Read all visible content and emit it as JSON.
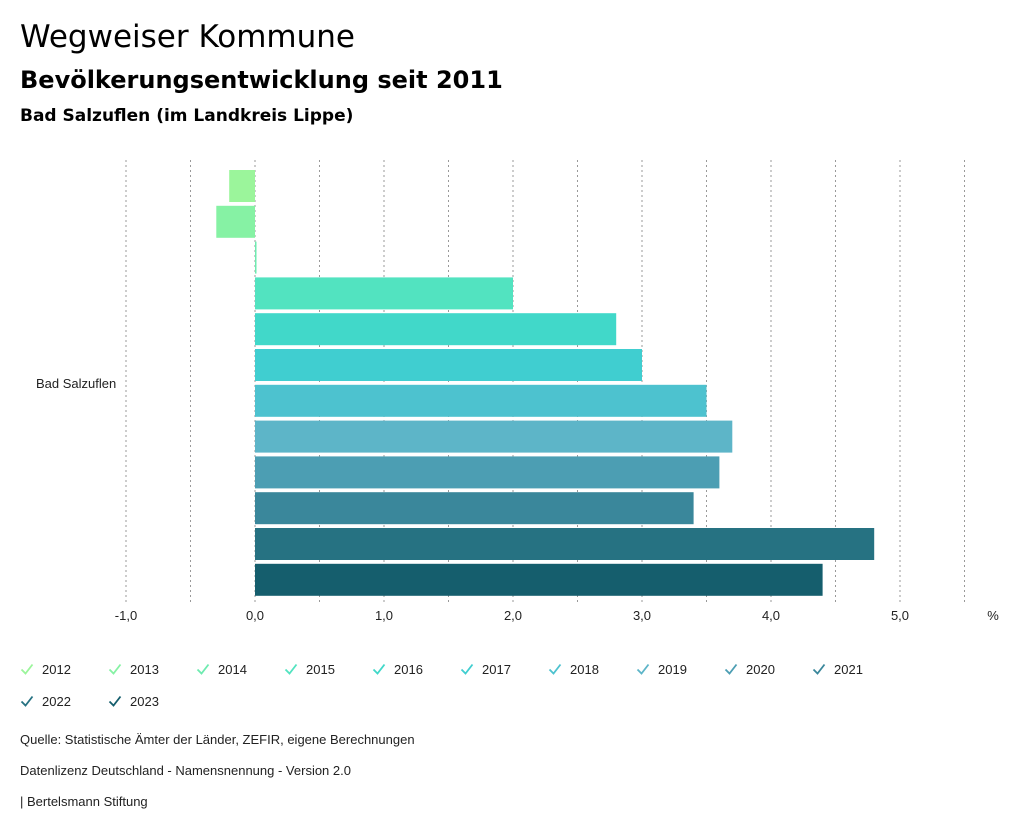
{
  "header": {
    "title": "Wegweiser Kommune",
    "subtitle": "Bevölkerungsentwicklung seit 2011",
    "region": "Bad Salzuflen (im Landkreis Lippe)"
  },
  "chart_data": {
    "type": "bar",
    "orientation": "horizontal",
    "categories": [
      "Bad Salzuflen"
    ],
    "series": [
      {
        "name": "2012",
        "values": [
          -0.2
        ],
        "color": "#9BF59B"
      },
      {
        "name": "2013",
        "values": [
          -0.3
        ],
        "color": "#86F2A4"
      },
      {
        "name": "2014",
        "values": [
          0.01
        ],
        "color": "#6EEBB0"
      },
      {
        "name": "2015",
        "values": [
          2.0
        ],
        "color": "#52E3C0"
      },
      {
        "name": "2016",
        "values": [
          2.8
        ],
        "color": "#41D8C9"
      },
      {
        "name": "2017",
        "values": [
          3.0
        ],
        "color": "#40CED0"
      },
      {
        "name": "2018",
        "values": [
          3.5
        ],
        "color": "#4DC2CF"
      },
      {
        "name": "2019",
        "values": [
          3.7
        ],
        "color": "#5DB5C8"
      },
      {
        "name": "2020",
        "values": [
          3.6
        ],
        "color": "#4C9EB3"
      },
      {
        "name": "2021",
        "values": [
          3.4
        ],
        "color": "#3A879B"
      },
      {
        "name": "2022",
        "values": [
          4.8
        ],
        "color": "#267282"
      },
      {
        "name": "2023",
        "values": [
          4.4
        ],
        "color": "#155E6D"
      }
    ],
    "xlim": [
      -1.0,
      5.5
    ],
    "ticks": [
      {
        "value": -1.0,
        "label": "-1,0"
      },
      {
        "value": 0.0,
        "label": "0,0"
      },
      {
        "value": 1.0,
        "label": "1,0"
      },
      {
        "value": 2.0,
        "label": "2,0"
      },
      {
        "value": 3.0,
        "label": "3,0"
      },
      {
        "value": 4.0,
        "label": "4,0"
      },
      {
        "value": 5.0,
        "label": "5,0"
      }
    ],
    "unit": "%",
    "grid": true,
    "legend_position": "bottom"
  },
  "footer": {
    "source": "Quelle: Statistische Ämter der Länder, ZEFIR, eigene Berechnungen",
    "license": "Datenlizenz Deutschland - Namensnennung - Version 2.0",
    "publisher": "| Bertelsmann Stiftung"
  }
}
